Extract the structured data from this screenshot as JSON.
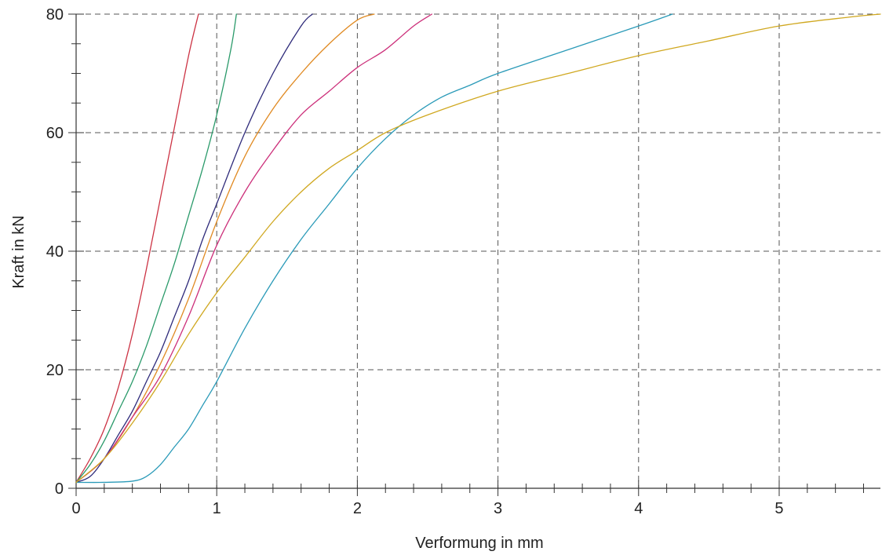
{
  "chart_data": {
    "type": "line",
    "title": "",
    "xlabel": "Verformung in mm",
    "ylabel": "Kraft in kN",
    "xlim": [
      0,
      5.72
    ],
    "ylim": [
      0,
      80
    ],
    "x_ticks": [
      0,
      1,
      2,
      3,
      4,
      5
    ],
    "y_ticks": [
      0,
      20,
      40,
      60,
      80
    ],
    "x_tick_labels": [
      "0",
      "1",
      "2",
      "3",
      "4",
      "5"
    ],
    "y_tick_labels": [
      "0",
      "20",
      "40",
      "60",
      "80"
    ],
    "x_minor_step": 0.2,
    "y_minor_step": 5,
    "grid": true,
    "legend": "none",
    "series": [
      {
        "color": "#cc3344",
        "x": [
          0,
          0.1,
          0.2,
          0.3,
          0.4,
          0.5,
          0.6,
          0.7,
          0.8,
          0.87
        ],
        "y": [
          1,
          5,
          10,
          17,
          26,
          37,
          49,
          61,
          73,
          80
        ]
      },
      {
        "color": "#2a9a6a",
        "x": [
          0,
          0.1,
          0.2,
          0.3,
          0.4,
          0.5,
          0.6,
          0.7,
          0.8,
          0.9,
          1.0,
          1.1,
          1.14
        ],
        "y": [
          1,
          4,
          8,
          13,
          18,
          24,
          31,
          38,
          46,
          54,
          63,
          74,
          80
        ]
      },
      {
        "color": "#2e2a7a",
        "x": [
          0,
          0.1,
          0.2,
          0.3,
          0.4,
          0.5,
          0.6,
          0.7,
          0.8,
          0.9,
          1.0,
          1.2,
          1.4,
          1.6,
          1.68
        ],
        "y": [
          1,
          2,
          5,
          9,
          13,
          18,
          23,
          29,
          35,
          42,
          48,
          60,
          70,
          78,
          80
        ]
      },
      {
        "color": "#e08a22",
        "x": [
          0,
          0.2,
          0.4,
          0.6,
          0.8,
          1.0,
          1.2,
          1.4,
          1.6,
          1.8,
          2.0,
          2.12
        ],
        "y": [
          1,
          5,
          12,
          21,
          32,
          45,
          56,
          64,
          70,
          75,
          79,
          80
        ]
      },
      {
        "color": "#cc2f7a",
        "x": [
          0,
          0.2,
          0.4,
          0.6,
          0.8,
          1.0,
          1.2,
          1.4,
          1.6,
          1.8,
          2.0,
          2.2,
          2.4,
          2.53
        ],
        "y": [
          1,
          5,
          12,
          19,
          29,
          41,
          50,
          57,
          63,
          67,
          71,
          74,
          78,
          80
        ]
      },
      {
        "color": "#2a9ab8",
        "x": [
          0,
          0.2,
          0.4,
          0.5,
          0.6,
          0.7,
          0.8,
          0.9,
          1.0,
          1.2,
          1.4,
          1.6,
          1.8,
          2.0,
          2.2,
          2.4,
          2.6,
          2.8,
          3.0,
          3.5,
          4.0,
          4.24
        ],
        "y": [
          1,
          1,
          1.2,
          2,
          4,
          7,
          10,
          14,
          18,
          27,
          35,
          42,
          48,
          54,
          59,
          63,
          66,
          68,
          70,
          74,
          78,
          80
        ]
      },
      {
        "color": "#d0a820",
        "x": [
          0,
          0.2,
          0.4,
          0.6,
          0.8,
          1.0,
          1.2,
          1.4,
          1.6,
          1.8,
          2.0,
          2.2,
          2.5,
          3.0,
          3.5,
          4.0,
          4.5,
          5.0,
          5.5,
          5.72
        ],
        "y": [
          1,
          5,
          11,
          18,
          26,
          33,
          39,
          45,
          50,
          54,
          57,
          60,
          63,
          67,
          70,
          73,
          75.5,
          78,
          79.5,
          80
        ]
      }
    ]
  }
}
